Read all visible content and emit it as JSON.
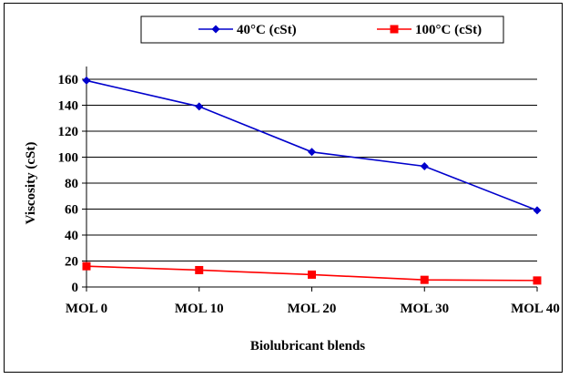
{
  "chart_data": {
    "type": "line",
    "title": "",
    "xlabel": "Biolubricant blends",
    "ylabel": "Viscosity (cSt)",
    "categories": [
      "MOL 0",
      "MOL 10",
      "MOL 20",
      "MOL 30",
      "MOL 40"
    ],
    "ylim": [
      0,
      160
    ],
    "yticks": [
      0,
      20,
      40,
      60,
      80,
      100,
      120,
      140,
      160
    ],
    "grid": "horizontal",
    "legend_position": "top",
    "series": [
      {
        "name": "40°C (cSt)",
        "color": "#0000CC",
        "marker": "diamond",
        "values": [
          159,
          139,
          104,
          93,
          59
        ]
      },
      {
        "name": "100°C (cSt)",
        "color": "#FF0000",
        "marker": "square",
        "values": [
          16,
          13,
          9.5,
          5.5,
          5
        ]
      }
    ]
  }
}
